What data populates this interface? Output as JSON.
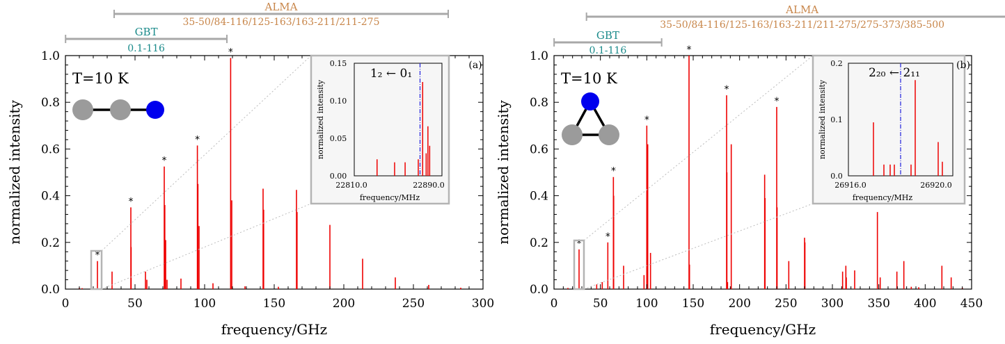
{
  "colors": {
    "spectrum": "#ee0000",
    "alma": "#c8864a",
    "gbt": "#1a8a8a",
    "band_bar": "#a8a8a8",
    "carbon_atom": "#9b9b9b",
    "nitrogen_atom": "#0000ee",
    "transition_line": "#2222dd",
    "inset_box": "#b4b4b4",
    "inset_bg": "#f6f6f6"
  },
  "panels": [
    {
      "label": "(a)",
      "temperature": "T=10 K",
      "molecule_icon": "linear-molecule-icon",
      "bands": [
        {
          "name": "ALMA",
          "range": "35-50/84-116/125-163/163-211/211-275",
          "start": 35,
          "end": 275
        },
        {
          "name": "GBT",
          "range": "0.1-116",
          "start": 0.1,
          "end": 116
        }
      ],
      "inset": {
        "transition": "1₂ ← 0₁",
        "xlabel": "frequency/MHz",
        "ylabel": "normalized intensity",
        "x_tick_labels": [
          "22810.0",
          "22890.0"
        ],
        "y_tick_labels": [
          "0.00",
          "0.05",
          "0.10",
          "0.15"
        ]
      }
    },
    {
      "label": "(b)",
      "temperature": "T=10 K",
      "molecule_icon": "cyclic-molecule-icon",
      "bands": [
        {
          "name": "ALMA",
          "range": "35-50/84-116/125-163/163-211/211-275/275-373/385-500",
          "start": 35,
          "end": 500
        },
        {
          "name": "GBT",
          "range": "0.1-116",
          "start": 0.1,
          "end": 116
        }
      ],
      "inset": {
        "transition": "2₂₀ ← 2₁₁",
        "xlabel": "frequency/MHz",
        "ylabel": "normalized intensity",
        "x_tick_labels": [
          "26916.0",
          "26920.0"
        ],
        "y_tick_labels": [
          "0.0",
          "0.1",
          "0.2"
        ]
      }
    }
  ],
  "chart_data": [
    {
      "type": "bar",
      "xlabel": "frequency/GHz",
      "ylabel": "normalized intensity",
      "xlim": [
        0,
        300
      ],
      "ylim": [
        0,
        1.0
      ],
      "x_ticks": [
        0,
        50,
        100,
        150,
        200,
        250,
        300
      ],
      "y_ticks": [
        0.0,
        0.2,
        0.4,
        0.6,
        0.8,
        1.0
      ],
      "lines": [
        {
          "x": 23.0,
          "y": 0.12
        },
        {
          "x": 33.5,
          "y": 0.075
        },
        {
          "x": 47.0,
          "y": 0.35
        },
        {
          "x": 47.2,
          "y": 0.18
        },
        {
          "x": 57.5,
          "y": 0.075
        },
        {
          "x": 58.5,
          "y": 0.04
        },
        {
          "x": 71.0,
          "y": 0.525
        },
        {
          "x": 71.4,
          "y": 0.36
        },
        {
          "x": 72.0,
          "y": 0.21
        },
        {
          "x": 73.0,
          "y": 0.04
        },
        {
          "x": 83.0,
          "y": 0.045
        },
        {
          "x": 94.8,
          "y": 0.615
        },
        {
          "x": 95.2,
          "y": 0.45
        },
        {
          "x": 96.0,
          "y": 0.27
        },
        {
          "x": 106.0,
          "y": 0.025
        },
        {
          "x": 118.7,
          "y": 0.99
        },
        {
          "x": 119.5,
          "y": 0.38
        },
        {
          "x": 129.0,
          "y": 0.012
        },
        {
          "x": 142.0,
          "y": 0.43
        },
        {
          "x": 142.4,
          "y": 0.34
        },
        {
          "x": 153.0,
          "y": 0.01
        },
        {
          "x": 166.0,
          "y": 0.425
        },
        {
          "x": 166.4,
          "y": 0.33
        },
        {
          "x": 190.0,
          "y": 0.275
        },
        {
          "x": 213.5,
          "y": 0.13
        },
        {
          "x": 237.0,
          "y": 0.05
        },
        {
          "x": 261.0,
          "y": 0.018
        },
        {
          "x": 284.0,
          "y": 0.006
        },
        {
          "x": 10.0,
          "y": 0.005
        },
        {
          "x": 12.0,
          "y": 0.004
        }
      ],
      "marked_lines_x": [
        23.0,
        47.0,
        71.0,
        94.8,
        118.7
      ],
      "inset_data": {
        "xlim": [
          22800,
          22900
        ],
        "ylim": [
          0,
          0.15
        ],
        "marker_x": 22875,
        "lines": [
          {
            "x": 22826,
            "y": 0.022
          },
          {
            "x": 22846,
            "y": 0.018
          },
          {
            "x": 22858,
            "y": 0.018
          },
          {
            "x": 22873,
            "y": 0.022
          },
          {
            "x": 22878,
            "y": 0.125
          },
          {
            "x": 22882,
            "y": 0.03
          },
          {
            "x": 22884,
            "y": 0.066
          },
          {
            "x": 22886,
            "y": 0.04
          }
        ]
      }
    },
    {
      "type": "bar",
      "xlabel": "frequency/GHz",
      "ylabel": "normalized intensity",
      "xlim": [
        0,
        450
      ],
      "ylim": [
        0,
        1.0
      ],
      "x_ticks": [
        0,
        50,
        100,
        150,
        200,
        250,
        300,
        350,
        400,
        450
      ],
      "y_ticks": [
        0.0,
        0.2,
        0.4,
        0.6,
        0.8,
        1.0
      ],
      "lines": [
        {
          "x": 27.0,
          "y": 0.17
        },
        {
          "x": 46.0,
          "y": 0.02
        },
        {
          "x": 52.0,
          "y": 0.03
        },
        {
          "x": 58.0,
          "y": 0.2
        },
        {
          "x": 64.0,
          "y": 0.48
        },
        {
          "x": 64.3,
          "y": 0.4
        },
        {
          "x": 75.0,
          "y": 0.1
        },
        {
          "x": 97.0,
          "y": 0.06
        },
        {
          "x": 100.0,
          "y": 0.7
        },
        {
          "x": 101.0,
          "y": 0.62
        },
        {
          "x": 104.0,
          "y": 0.155
        },
        {
          "x": 145.5,
          "y": 1.0
        },
        {
          "x": 146.0,
          "y": 0.105
        },
        {
          "x": 186.0,
          "y": 0.83
        },
        {
          "x": 186.3,
          "y": 0.5
        },
        {
          "x": 187.0,
          "y": 0.03
        },
        {
          "x": 191.0,
          "y": 0.62
        },
        {
          "x": 227.0,
          "y": 0.49
        },
        {
          "x": 227.4,
          "y": 0.39
        },
        {
          "x": 240.0,
          "y": 0.78
        },
        {
          "x": 240.4,
          "y": 0.35
        },
        {
          "x": 253.0,
          "y": 0.12
        },
        {
          "x": 270.0,
          "y": 0.22
        },
        {
          "x": 270.4,
          "y": 0.2
        },
        {
          "x": 311.0,
          "y": 0.075
        },
        {
          "x": 314.5,
          "y": 0.1
        },
        {
          "x": 315.0,
          "y": 0.05
        },
        {
          "x": 324.0,
          "y": 0.08
        },
        {
          "x": 348.5,
          "y": 0.33
        },
        {
          "x": 351.5,
          "y": 0.05
        },
        {
          "x": 369.5,
          "y": 0.075
        },
        {
          "x": 377.0,
          "y": 0.12
        },
        {
          "x": 385.0,
          "y": 0.01
        },
        {
          "x": 393.0,
          "y": 0.008
        },
        {
          "x": 418.0,
          "y": 0.1
        },
        {
          "x": 428.0,
          "y": 0.05
        },
        {
          "x": 440.0,
          "y": 0.006
        },
        {
          "x": 15.0,
          "y": 0.005
        }
      ],
      "marked_lines_x": [
        27.0,
        58.0,
        64.0,
        100.0,
        145.5,
        186.0,
        240.0
      ],
      "inset_data": {
        "xlim": [
          26915.5,
          26920.5
        ],
        "ylim": [
          0,
          0.2
        ],
        "marker_x": 26918.0,
        "lines": [
          {
            "x": 26916.7,
            "y": 0.095
          },
          {
            "x": 26917.2,
            "y": 0.02
          },
          {
            "x": 26917.5,
            "y": 0.02
          },
          {
            "x": 26917.7,
            "y": 0.02
          },
          {
            "x": 26918.5,
            "y": 0.02
          },
          {
            "x": 26918.7,
            "y": 0.17
          },
          {
            "x": 26919.8,
            "y": 0.06
          },
          {
            "x": 26920.0,
            "y": 0.025
          }
        ]
      }
    }
  ]
}
